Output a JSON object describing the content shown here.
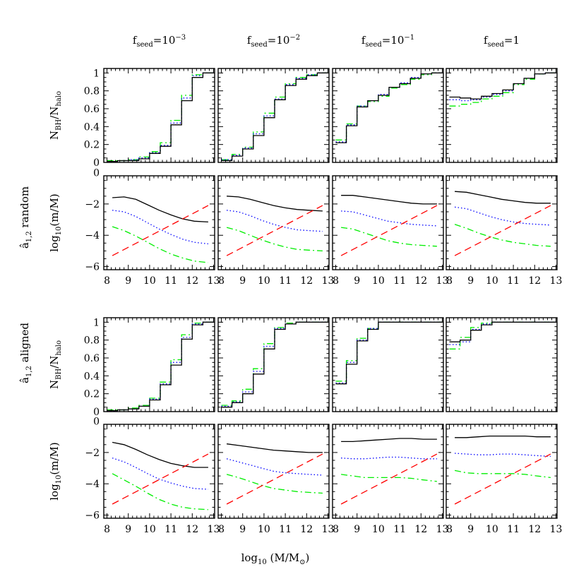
{
  "figure": {
    "columns": [
      {
        "prefix": "f",
        "sub": "seed",
        "eq": "=",
        "base": "10",
        "exp": "−3"
      },
      {
        "prefix": "f",
        "sub": "seed",
        "eq": "=",
        "base": "10",
        "exp": "−2"
      },
      {
        "prefix": "f",
        "sub": "seed",
        "eq": "=",
        "base": "10",
        "exp": "−1"
      },
      {
        "prefix": "f",
        "sub": "seed",
        "eq": "=",
        "base": "1",
        "exp": ""
      }
    ],
    "block_labels": [
      {
        "main": "â",
        "sub": "1,2",
        "word": "random"
      },
      {
        "main": "â",
        "sub": "1,2",
        "word": "aligned"
      }
    ],
    "ylabel_frac": {
      "a": "N",
      "a_sub": "BH",
      "slash": "/",
      "b": "N",
      "b_sub": "halo"
    },
    "ylabel_log": {
      "main": "log",
      "sub": "10",
      "rest": "(m/M)"
    },
    "xlabel": {
      "main": "log",
      "sub": "10",
      "rest": " (M/M",
      "sun_sub": "⊙",
      "close": ")"
    },
    "colors": {
      "black": "#000000",
      "blue": "#0000ff",
      "green": "#00ee00",
      "red": "#ff0000"
    }
  },
  "chart_data": {
    "type": "line",
    "x_bins": [
      8.25,
      8.75,
      9.25,
      9.75,
      10.25,
      10.75,
      11.25,
      11.75,
      12.25,
      12.75
    ],
    "frac_panels": {
      "ylim": [
        0,
        1.05
      ],
      "yticks": [
        0,
        0.2,
        0.4,
        0.6,
        0.8,
        1
      ],
      "ytick_labels": [
        "0",
        "0.2",
        "0.4",
        "0.6",
        "0.8",
        "1"
      ]
    },
    "log_panels": {
      "xlim": [
        7.85,
        13.05
      ],
      "ylim": [
        -6.2,
        -0.2
      ],
      "xticks": [
        8,
        9,
        10,
        11,
        12,
        13
      ],
      "xtick_labels": [
        "8",
        "9",
        "10",
        "11",
        "12",
        "13"
      ],
      "yticks": [
        0,
        -2,
        -4,
        -6
      ],
      "ytick_labels": [
        "0",
        "−2",
        "−4",
        "−6"
      ]
    },
    "series": [
      {
        "name": "",
        "color": "black",
        "style": "solid"
      },
      {
        "name": "",
        "color": "blue",
        "style": "dotted"
      },
      {
        "name": "",
        "color": "green",
        "style": "dashdot"
      },
      {
        "name": "",
        "color": "red",
        "style": "dashed"
      }
    ],
    "red_line": {
      "x": [
        8.25,
        12.75
      ],
      "y": [
        -5.3,
        -2.1
      ]
    },
    "random": {
      "frac": [
        {
          "black": [
            0.01,
            0.02,
            0.02,
            0.04,
            0.1,
            0.18,
            0.42,
            0.69,
            0.95,
            1.0
          ],
          "blue": [
            0.01,
            0.02,
            0.03,
            0.05,
            0.11,
            0.19,
            0.44,
            0.72,
            0.97,
            1.0
          ],
          "green": [
            0.02,
            0.02,
            0.03,
            0.06,
            0.12,
            0.22,
            0.47,
            0.75,
            0.98,
            1.0
          ]
        },
        {
          "black": [
            0.02,
            0.07,
            0.15,
            0.3,
            0.5,
            0.7,
            0.86,
            0.93,
            0.97,
            1.0
          ],
          "blue": [
            0.03,
            0.08,
            0.16,
            0.32,
            0.52,
            0.71,
            0.87,
            0.94,
            0.98,
            1.0
          ],
          "green": [
            0.03,
            0.09,
            0.17,
            0.34,
            0.55,
            0.73,
            0.88,
            0.95,
            0.98,
            1.0
          ]
        },
        {
          "black": [
            0.22,
            0.41,
            0.62,
            0.69,
            0.75,
            0.84,
            0.88,
            0.94,
            0.99,
            1.0
          ],
          "blue": [
            0.23,
            0.42,
            0.63,
            0.69,
            0.76,
            0.84,
            0.89,
            0.95,
            0.99,
            1.0
          ],
          "green": [
            0.25,
            0.43,
            0.63,
            0.68,
            0.74,
            0.83,
            0.87,
            0.93,
            0.98,
            1.0
          ]
        },
        {
          "black": [
            0.73,
            0.72,
            0.71,
            0.74,
            0.77,
            0.81,
            0.88,
            0.94,
            0.99,
            1.0
          ],
          "blue": [
            0.7,
            0.69,
            0.7,
            0.73,
            0.76,
            0.8,
            0.88,
            0.94,
            0.99,
            1.0
          ],
          "green": [
            0.63,
            0.65,
            0.67,
            0.71,
            0.74,
            0.78,
            0.87,
            0.93,
            0.99,
            1.0
          ]
        }
      ],
      "log": [
        {
          "black": [
            -1.6,
            -1.55,
            -1.7,
            -2.05,
            -2.4,
            -2.7,
            -2.95,
            -3.1,
            -3.15
          ],
          "blue": [
            -2.4,
            -2.5,
            -2.8,
            -3.2,
            -3.6,
            -3.95,
            -4.25,
            -4.45,
            -4.55
          ],
          "green": [
            -3.45,
            -3.7,
            -4.05,
            -4.45,
            -4.85,
            -5.2,
            -5.45,
            -5.65,
            -5.75
          ]
        },
        {
          "black": [
            -1.5,
            -1.55,
            -1.7,
            -1.9,
            -2.1,
            -2.25,
            -2.35,
            -2.4,
            -2.45
          ],
          "blue": [
            -2.4,
            -2.5,
            -2.75,
            -3.05,
            -3.3,
            -3.5,
            -3.65,
            -3.7,
            -3.75
          ],
          "green": [
            -3.5,
            -3.7,
            -4.0,
            -4.3,
            -4.55,
            -4.75,
            -4.9,
            -4.95,
            -5.0
          ]
        },
        {
          "black": [
            -1.45,
            -1.45,
            -1.55,
            -1.65,
            -1.75,
            -1.85,
            -1.95,
            -2.0,
            -2.0
          ],
          "blue": [
            -2.45,
            -2.5,
            -2.7,
            -2.9,
            -3.1,
            -3.2,
            -3.3,
            -3.35,
            -3.4
          ],
          "green": [
            -3.5,
            -3.6,
            -3.85,
            -4.1,
            -4.35,
            -4.5,
            -4.6,
            -4.65,
            -4.7
          ]
        },
        {
          "black": [
            -1.2,
            -1.25,
            -1.4,
            -1.55,
            -1.7,
            -1.8,
            -1.9,
            -1.95,
            -1.95
          ],
          "blue": [
            -2.2,
            -2.3,
            -2.55,
            -2.8,
            -3.0,
            -3.15,
            -3.25,
            -3.3,
            -3.35
          ],
          "green": [
            -3.3,
            -3.55,
            -3.85,
            -4.1,
            -4.3,
            -4.45,
            -4.55,
            -4.65,
            -4.7
          ]
        }
      ]
    },
    "aligned": {
      "frac": [
        {
          "black": [
            0.01,
            0.02,
            0.03,
            0.06,
            0.13,
            0.3,
            0.52,
            0.81,
            0.97,
            1.0
          ],
          "blue": [
            0.01,
            0.02,
            0.03,
            0.06,
            0.14,
            0.31,
            0.55,
            0.83,
            0.98,
            1.0
          ],
          "green": [
            0.02,
            0.02,
            0.04,
            0.07,
            0.15,
            0.33,
            0.58,
            0.86,
            0.99,
            1.0
          ]
        },
        {
          "black": [
            0.05,
            0.1,
            0.2,
            0.42,
            0.7,
            0.92,
            0.98,
            1.0,
            1.0,
            1.0
          ],
          "blue": [
            0.06,
            0.11,
            0.22,
            0.45,
            0.73,
            0.93,
            0.98,
            1.0,
            1.0,
            1.0
          ],
          "green": [
            0.07,
            0.12,
            0.25,
            0.48,
            0.76,
            0.94,
            0.99,
            1.0,
            1.0,
            1.0
          ]
        },
        {
          "black": [
            0.31,
            0.53,
            0.79,
            0.92,
            1.0,
            1.0,
            1.0,
            1.0,
            1.0,
            1.0
          ],
          "blue": [
            0.32,
            0.55,
            0.8,
            0.93,
            1.0,
            1.0,
            1.0,
            1.0,
            1.0,
            1.0
          ],
          "green": [
            0.34,
            0.57,
            0.82,
            0.93,
            1.0,
            1.0,
            1.0,
            1.0,
            1.0,
            1.0
          ]
        },
        {
          "black": [
            0.78,
            0.8,
            0.91,
            0.97,
            1.0,
            1.0,
            1.0,
            1.0,
            1.0,
            1.0
          ],
          "blue": [
            0.75,
            0.78,
            0.92,
            0.98,
            1.0,
            1.0,
            1.0,
            1.0,
            1.0,
            1.0
          ],
          "green": [
            0.7,
            0.83,
            0.94,
            0.99,
            1.0,
            1.0,
            1.0,
            1.0,
            1.0,
            1.0
          ]
        }
      ],
      "log": [
        {
          "black": [
            -1.35,
            -1.5,
            -1.8,
            -2.15,
            -2.45,
            -2.7,
            -2.85,
            -2.95,
            -2.95
          ],
          "blue": [
            -2.35,
            -2.6,
            -2.95,
            -3.35,
            -3.7,
            -3.95,
            -4.15,
            -4.3,
            -4.35
          ],
          "green": [
            -3.35,
            -3.75,
            -4.15,
            -4.6,
            -5.0,
            -5.3,
            -5.5,
            -5.6,
            -5.65
          ],
          "red_note": ""
        },
        {
          "black": [
            -1.45,
            -1.55,
            -1.65,
            -1.75,
            -1.85,
            -1.9,
            -1.95,
            -2.0,
            -2.0
          ],
          "blue": [
            -2.4,
            -2.6,
            -2.8,
            -3.0,
            -3.2,
            -3.3,
            -3.35,
            -3.4,
            -3.45
          ],
          "green": [
            -3.4,
            -3.6,
            -3.85,
            -4.1,
            -4.3,
            -4.4,
            -4.5,
            -4.55,
            -4.6
          ]
        },
        {
          "black": [
            -1.3,
            -1.3,
            -1.25,
            -1.2,
            -1.15,
            -1.1,
            -1.1,
            -1.15,
            -1.15
          ],
          "blue": [
            -2.35,
            -2.4,
            -2.4,
            -2.35,
            -2.3,
            -2.3,
            -2.35,
            -2.4,
            -2.4
          ],
          "green": [
            -3.4,
            -3.5,
            -3.6,
            -3.6,
            -3.6,
            -3.6,
            -3.65,
            -3.75,
            -3.85
          ]
        },
        {
          "black": [
            -1.05,
            -1.05,
            -1.0,
            -0.95,
            -0.95,
            -0.95,
            -0.95,
            -1.0,
            -1.0
          ],
          "blue": [
            -2.05,
            -2.1,
            -2.15,
            -2.15,
            -2.1,
            -2.1,
            -2.15,
            -2.2,
            -2.25
          ],
          "green": [
            -3.15,
            -3.3,
            -3.35,
            -3.35,
            -3.35,
            -3.35,
            -3.4,
            -3.5,
            -3.6
          ]
        }
      ]
    },
    "log_x": [
      8.25,
      8.8,
      9.35,
      9.9,
      10.45,
      11.0,
      11.55,
      12.1,
      12.75
    ]
  }
}
